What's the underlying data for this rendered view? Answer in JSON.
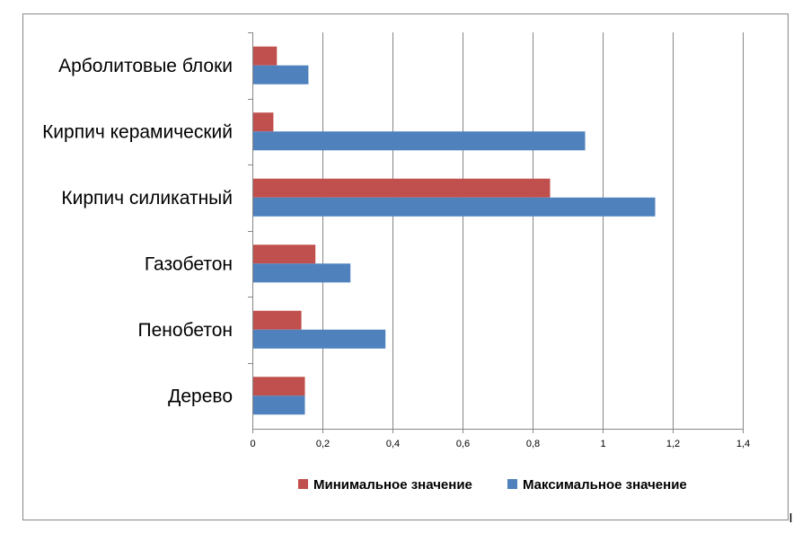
{
  "chart_data": {
    "type": "bar",
    "orientation": "horizontal",
    "title": "",
    "xlabel": "",
    "ylabel": "",
    "categories": [
      "Арболитовые блоки",
      "Кирпич керамический",
      "Кирпич силикатный",
      "Газобетон",
      "Пенобетон",
      "Дерево"
    ],
    "series": [
      {
        "name": "Минимальное значение",
        "color": "#C0504D",
        "values": [
          0.07,
          0.06,
          0.85,
          0.18,
          0.14,
          0.15
        ]
      },
      {
        "name": "Максимальное значение",
        "color": "#4F81BD",
        "values": [
          0.16,
          0.95,
          1.15,
          0.28,
          0.38,
          0.15
        ]
      }
    ],
    "xlim": [
      0,
      1.4
    ],
    "xticks": [
      "0",
      "0,2",
      "0,4",
      "0,6",
      "0,8",
      "1",
      "1,2",
      "1,4"
    ],
    "grid": "vertical",
    "legend_position": "bottom"
  }
}
